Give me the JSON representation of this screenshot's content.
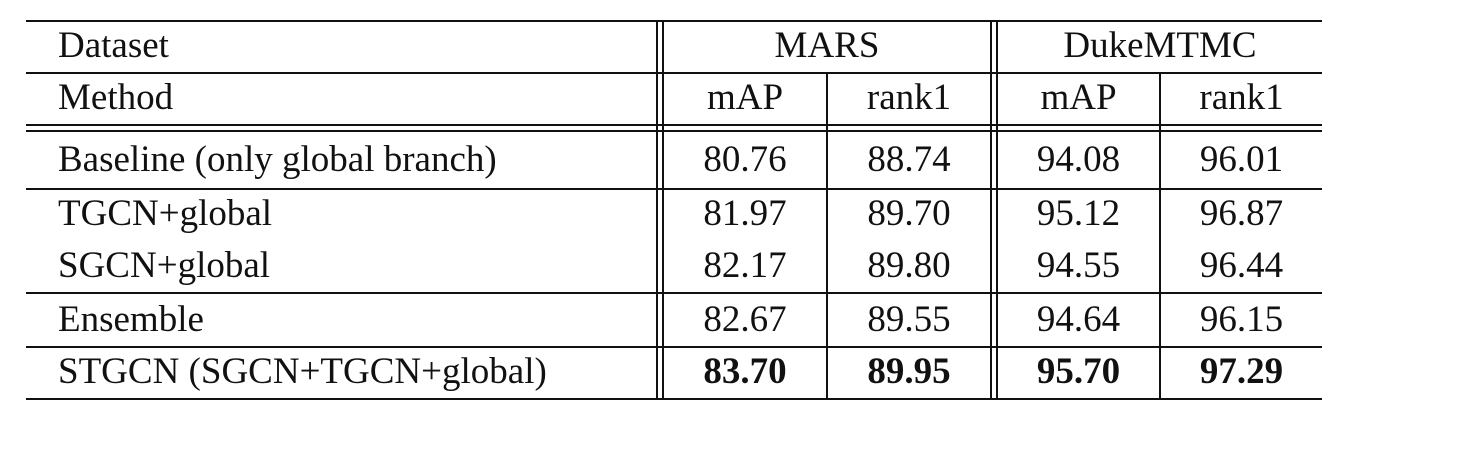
{
  "table": {
    "header_row1": {
      "label": "Dataset",
      "group1": "MARS",
      "group2": "DukeMTMC"
    },
    "header_row2": {
      "label": "Method",
      "mars_map": "mAP",
      "mars_rank1": "rank1",
      "duke_map": "mAP",
      "duke_rank1": "rank1"
    },
    "rows": [
      {
        "method": "Baseline (only global branch)",
        "mars_map": "80.76",
        "mars_rank1": "88.74",
        "duke_map": "94.08",
        "duke_rank1": "96.01",
        "bold": false
      },
      {
        "method": "TGCN+global",
        "mars_map": "81.97",
        "mars_rank1": "89.70",
        "duke_map": "95.12",
        "duke_rank1": "96.87",
        "bold": false
      },
      {
        "method": "SGCN+global",
        "mars_map": "82.17",
        "mars_rank1": "89.80",
        "duke_map": "94.55",
        "duke_rank1": "96.44",
        "bold": false
      },
      {
        "method": "Ensemble",
        "mars_map": "82.67",
        "mars_rank1": "89.55",
        "duke_map": "94.64",
        "duke_rank1": "96.15",
        "bold": false
      },
      {
        "method": "STGCN (SGCN+TGCN+global)",
        "mars_map": "83.70",
        "mars_rank1": "89.95",
        "duke_map": "95.70",
        "duke_rank1": "97.29",
        "bold": true
      }
    ]
  }
}
